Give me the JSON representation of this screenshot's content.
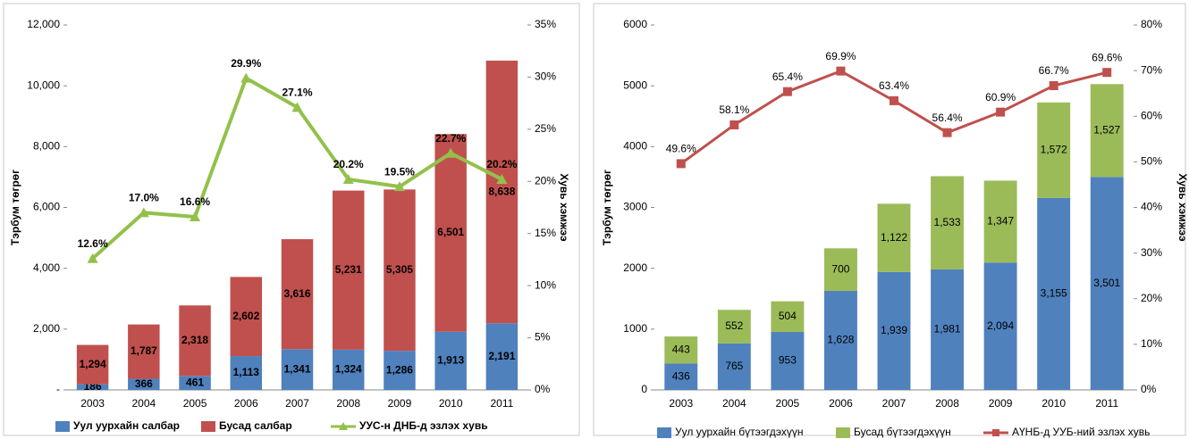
{
  "chart_data": [
    {
      "type": "bar",
      "stacked": true,
      "y_label": "Тэрбум төгрөг",
      "y2_label": "Хувь хэмжээ",
      "categories": [
        "2003",
        "2004",
        "2005",
        "2006",
        "2007",
        "2008",
        "2009",
        "2010",
        "2011"
      ],
      "series": [
        {
          "name": "Уул уурхайн салбар",
          "color": "#4f81bd",
          "values": [
            186,
            366,
            461,
            1113,
            1341,
            1324,
            1286,
            1913,
            2191
          ],
          "value_labels": [
            "186",
            "366",
            "461",
            "1,113",
            "1,341",
            "1,324",
            "1,286",
            "1,913",
            "2,191"
          ]
        },
        {
          "name": "Бусад салбар",
          "color": "#c0504d",
          "values": [
            1294,
            1787,
            2318,
            2602,
            3616,
            5231,
            5305,
            6501,
            8638
          ],
          "value_labels": [
            "1,294",
            "1,787",
            "2,318",
            "2,602",
            "3,616",
            "5,231",
            "5,305",
            "6,501",
            "8,638"
          ]
        },
        {
          "name": "УУС-н ДНБ-д эзлэх хувь",
          "color": "#92c14b",
          "axis": "y2",
          "values": [
            12.6,
            17.0,
            16.6,
            29.9,
            27.1,
            20.2,
            19.5,
            22.7,
            20.2
          ],
          "value_labels": [
            "12.6%",
            "17.0%",
            "16.6%",
            "29.9%",
            "27.1%",
            "20.2%",
            "19.5%",
            "22.7%",
            "20.2%"
          ]
        }
      ],
      "ylim": [
        0,
        12000
      ],
      "yticks": [
        {
          "value": 0,
          "label": "-"
        },
        {
          "value": 2000,
          "label": "2,000"
        },
        {
          "value": 4000,
          "label": "4,000"
        },
        {
          "value": 6000,
          "label": "6,000"
        },
        {
          "value": 8000,
          "label": "8,000"
        },
        {
          "value": 10000,
          "label": "10,000"
        },
        {
          "value": 12000,
          "label": "12,000"
        }
      ],
      "y2lim": [
        0,
        35
      ],
      "y2ticks": [
        {
          "value": 0,
          "label": "0%"
        },
        {
          "value": 5,
          "label": "5%"
        },
        {
          "value": 10,
          "label": "10%"
        },
        {
          "value": 15,
          "label": "15%"
        },
        {
          "value": 20,
          "label": "20%"
        },
        {
          "value": 25,
          "label": "25%"
        },
        {
          "value": 30,
          "label": "30%"
        },
        {
          "value": 35,
          "label": "35%"
        }
      ],
      "legend": "bottom"
    },
    {
      "type": "bar",
      "stacked": true,
      "y_label": "Тэрбум төгрөг",
      "y2_label": "Хувь хэмжээ",
      "categories": [
        "2003",
        "2004",
        "2005",
        "2006",
        "2007",
        "2008",
        "2009",
        "2010",
        "2011"
      ],
      "series": [
        {
          "name": "Уул уурхайн бүтээгдэхүүн",
          "color": "#4f81bd",
          "values": [
            436,
            765,
            953,
            1628,
            1939,
            1981,
            2094,
            3155,
            3501
          ],
          "value_labels": [
            "436",
            "765",
            "953",
            "1,628",
            "1,939",
            "1,981",
            "2,094",
            "3,155",
            "3,501"
          ]
        },
        {
          "name": "Бусад бүтээгдэхүүн",
          "color": "#9bbb59",
          "values": [
            443,
            552,
            504,
            700,
            1122,
            1533,
            1347,
            1572,
            1527
          ],
          "value_labels": [
            "443",
            "552",
            "504",
            "700",
            "1,122",
            "1,533",
            "1,347",
            "1,572",
            "1,527"
          ]
        },
        {
          "name": "АҮНБ-д УУБ-ний эзлэх хувь",
          "color": "#c0504d",
          "axis": "y2",
          "values": [
            49.6,
            58.1,
            65.4,
            69.9,
            63.4,
            56.4,
            60.9,
            66.7,
            69.6
          ],
          "value_labels": [
            "49.6%",
            "58.1%",
            "65.4%",
            "69.9%",
            "63.4%",
            "56.4%",
            "60.9%",
            "66.7%",
            "69.6%"
          ]
        }
      ],
      "ylim": [
        0,
        6000
      ],
      "yticks": [
        0,
        1000,
        2000,
        3000,
        4000,
        5000,
        6000
      ],
      "y2lim": [
        0,
        80
      ],
      "y2ticks": [
        {
          "value": 0,
          "label": "0%"
        },
        {
          "value": 10,
          "label": "10%"
        },
        {
          "value": 20,
          "label": "20%"
        },
        {
          "value": 30,
          "label": "30%"
        },
        {
          "value": 40,
          "label": "40%"
        },
        {
          "value": 50,
          "label": "50%"
        },
        {
          "value": 60,
          "label": "60%"
        },
        {
          "value": 70,
          "label": "70%"
        },
        {
          "value": 80,
          "label": "80%"
        }
      ],
      "legend": "bottom"
    }
  ]
}
